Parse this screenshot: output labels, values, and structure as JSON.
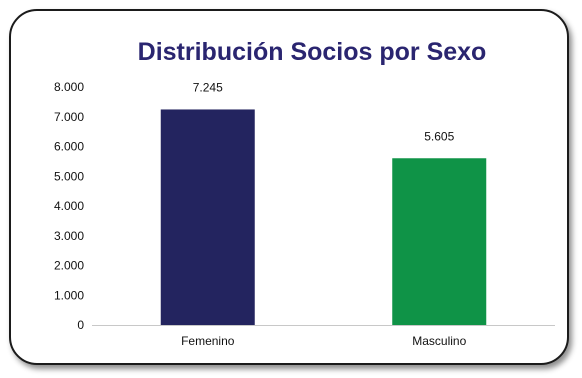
{
  "chart_data": {
    "type": "bar",
    "title": "Distribución Socios por Sexo",
    "categories": [
      "Femenino",
      "Masculino"
    ],
    "values": [
      7245,
      5605
    ],
    "data_labels": [
      "7.245",
      "5.605"
    ],
    "y_ticks": [
      "0",
      "1.000",
      "2.000",
      "3.000",
      "4.000",
      "5.000",
      "6.000",
      "7.000",
      "8.000"
    ],
    "ylim": [
      0,
      8000
    ],
    "xlabel": "",
    "ylabel": "",
    "grid": false,
    "legend": "none",
    "colors": [
      "#23245f",
      "#0f9347"
    ]
  }
}
